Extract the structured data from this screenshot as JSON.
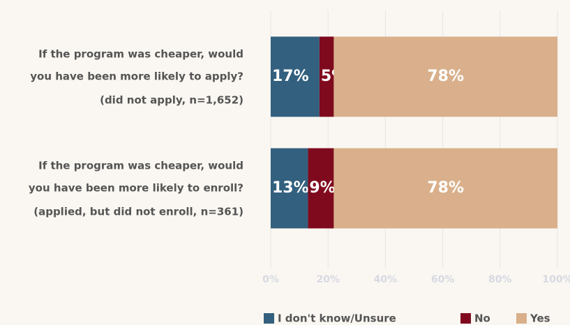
{
  "chart_data": {
    "type": "stacked-barh",
    "categories": [
      [
        "If the program was cheaper, would",
        "you have been more likely to apply?",
        "(did not apply, n=1,652)"
      ],
      [
        "If the program was cheaper, would",
        "you have been more likely to enroll?",
        "(applied, but did not enroll, n=361)"
      ]
    ],
    "series": [
      {
        "name": "I don't know/Unsure",
        "color": "#33607f",
        "values": [
          17,
          13
        ],
        "value_labels": [
          "17%",
          "13%"
        ]
      },
      {
        "name": "No",
        "color": "#7f0a1e",
        "values": [
          5,
          9
        ],
        "value_labels": [
          "5%",
          "9%"
        ]
      },
      {
        "name": "Yes",
        "color": "#d9b08b",
        "values": [
          78,
          78
        ],
        "value_labels": [
          "78%",
          "78%"
        ]
      }
    ],
    "xlim": [
      0,
      100
    ],
    "xticks": [
      {
        "value": 0,
        "label": "0%"
      },
      {
        "value": 20,
        "label": "20%"
      },
      {
        "value": 40,
        "label": "40%"
      },
      {
        "value": 60,
        "label": "60%"
      },
      {
        "value": 80,
        "label": "80%"
      },
      {
        "value": 100,
        "label": "100%"
      }
    ],
    "grid": true,
    "legend": "bottom"
  }
}
